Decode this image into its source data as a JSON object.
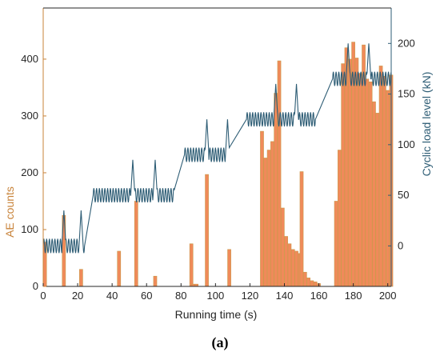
{
  "chart_data": {
    "type": "bar",
    "xlabel": "Running time (s)",
    "ylabel_left": "AE counts",
    "ylabel_right": "Cyclic load level (kN)",
    "xlim": [
      0,
      202
    ],
    "ylim_left": [
      0,
      490
    ],
    "ylim_right": [
      -40,
      235
    ],
    "x_ticks": [
      0,
      20,
      40,
      60,
      80,
      100,
      120,
      140,
      160,
      180,
      200
    ],
    "y_left_ticks": [
      0,
      100,
      200,
      300,
      400
    ],
    "y_right_ticks": [
      0,
      50,
      100,
      150,
      200
    ],
    "grid": false,
    "colors": {
      "bar_fill": "#f08a5a",
      "bar_edge": "#c99a4a",
      "left_axis": "#c8833a",
      "right_axis": "#2e5d75",
      "load_line": "#2e5d75"
    },
    "series": [
      {
        "name": "",
        "kind": "bar",
        "axis": "left",
        "bar_width": 1.9,
        "points": [
          [
            1,
            78
          ],
          [
            12,
            125
          ],
          [
            22,
            30
          ],
          [
            44,
            62
          ],
          [
            54,
            150
          ],
          [
            65,
            18
          ],
          [
            86,
            75
          ],
          [
            87,
            4
          ],
          [
            89,
            4
          ],
          [
            95,
            197
          ],
          [
            108,
            65
          ],
          [
            127,
            273
          ],
          [
            129,
            226
          ],
          [
            131,
            240
          ],
          [
            133,
            255
          ],
          [
            135,
            340
          ],
          [
            137,
            397
          ],
          [
            139,
            138
          ],
          [
            141,
            88
          ],
          [
            143,
            75
          ],
          [
            145,
            65
          ],
          [
            147,
            62
          ],
          [
            149,
            58
          ],
          [
            150,
            202
          ],
          [
            152,
            25
          ],
          [
            154,
            15
          ],
          [
            156,
            10
          ],
          [
            158,
            8
          ],
          [
            160,
            5
          ],
          [
            170,
            150
          ],
          [
            172,
            240
          ],
          [
            174,
            392
          ],
          [
            176,
            420
          ],
          [
            178,
            400
          ],
          [
            180,
            430
          ],
          [
            182,
            402
          ],
          [
            184,
            375
          ],
          [
            186,
            425
          ],
          [
            188,
            365
          ],
          [
            190,
            360
          ],
          [
            192,
            325
          ],
          [
            194,
            305
          ],
          [
            196,
            388
          ],
          [
            198,
            370
          ],
          [
            200,
            345
          ],
          [
            202,
            372
          ]
        ]
      },
      {
        "name": "",
        "kind": "line",
        "axis": "right",
        "stages": [
          {
            "start": 0,
            "end": 24,
            "level": 0,
            "peaks": [
              12,
              22
            ]
          },
          {
            "start": 29,
            "end": 76,
            "level": 50,
            "peaks": [
              52,
              65
            ]
          },
          {
            "start": 82,
            "end": 108,
            "level": 90,
            "peaks": [
              95,
              107
            ]
          },
          {
            "start": 118,
            "end": 158,
            "level": 125,
            "peaks": [
              135,
              147
            ]
          },
          {
            "start": 168,
            "end": 202,
            "level": 165,
            "peaks": [
              177,
              189
            ]
          }
        ],
        "peak_height": 35,
        "ripple_amplitude": 7,
        "ripple_period": 1.6
      }
    ]
  },
  "caption": "(a)"
}
